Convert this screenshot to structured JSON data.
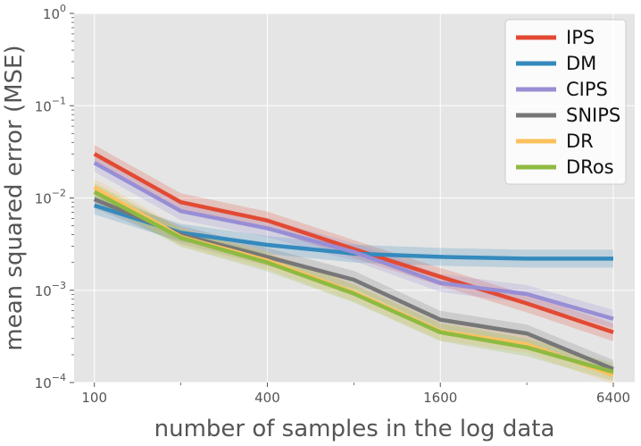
{
  "chart_data": {
    "type": "line",
    "xlabel": "number of samples in the log data",
    "ylabel": "mean squared error (MSE)",
    "x_scale": "log2",
    "y_scale": "log10",
    "xlim": [
      85,
      7600
    ],
    "ylim": [
      0.0001,
      1
    ],
    "x": [
      100,
      200,
      400,
      800,
      1600,
      3200,
      6400
    ],
    "x_ticks": [
      100,
      400,
      1600,
      6400
    ],
    "x_tick_labels": [
      "100",
      "400",
      "1600",
      "6400"
    ],
    "y_ticks": [
      0.0001,
      0.001,
      0.01,
      0.1,
      1
    ],
    "y_tick_labels": [
      {
        "base": "10",
        "exp": "−4"
      },
      {
        "base": "10",
        "exp": "−3"
      },
      {
        "base": "10",
        "exp": "−2"
      },
      {
        "base": "10",
        "exp": "−1"
      },
      {
        "base": "10",
        "exp": "0"
      }
    ],
    "grid": true,
    "legend_position": "top-right",
    "series": [
      {
        "name": "IPS",
        "color": "#E24A33",
        "values": [
          0.03,
          0.009,
          0.0057,
          0.0028,
          0.0014,
          0.00072,
          0.00035
        ]
      },
      {
        "name": "DM",
        "color": "#348ABD",
        "values": [
          0.0083,
          0.0042,
          0.0031,
          0.0025,
          0.0023,
          0.0022,
          0.0022
        ]
      },
      {
        "name": "CIPS",
        "color": "#988ED5",
        "values": [
          0.024,
          0.0072,
          0.0047,
          0.0026,
          0.0012,
          0.00091,
          0.00049
        ]
      },
      {
        "name": "SNIPS",
        "color": "#777777",
        "values": [
          0.0097,
          0.004,
          0.0023,
          0.0013,
          0.00048,
          0.00034,
          0.00014
        ]
      },
      {
        "name": "DR",
        "color": "#FBC15E",
        "values": [
          0.013,
          0.0038,
          0.0021,
          0.00095,
          0.00036,
          0.00026,
          0.00012
        ]
      },
      {
        "name": "DRos",
        "color": "#8EBA42",
        "values": [
          0.0116,
          0.0037,
          0.002,
          0.00092,
          0.00035,
          0.00024,
          0.00013
        ]
      }
    ]
  }
}
